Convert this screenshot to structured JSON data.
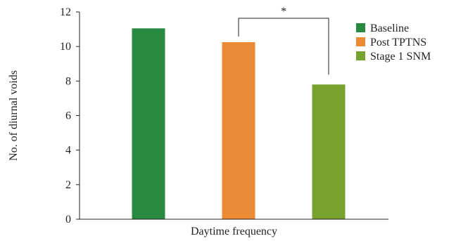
{
  "chart_data": {
    "type": "bar",
    "title": "",
    "xlabel": "Daytime frequency",
    "ylabel": "No. of diurnal voids",
    "ylim": [
      0,
      12
    ],
    "yticks": [
      0,
      2,
      4,
      6,
      8,
      10,
      12
    ],
    "grid": false,
    "legend_position": "right",
    "series": [
      {
        "name": "Baseline",
        "value": 11.05,
        "color": "#288a41"
      },
      {
        "name": "Post TPTNS",
        "value": 10.25,
        "color": "#ec8b36"
      },
      {
        "name": "Stage 1 SNM",
        "value": 7.8,
        "color": "#77a22f"
      }
    ],
    "annotations": [
      {
        "text": "*",
        "between": [
          "Post TPTNS",
          "Stage 1 SNM"
        ]
      }
    ]
  }
}
